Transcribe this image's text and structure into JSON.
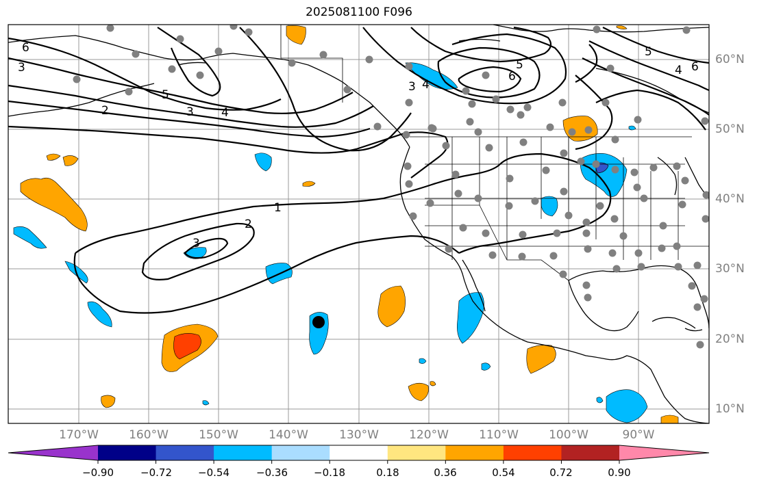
{
  "title": "2025081100 F096",
  "lon_labels": [
    "170°W",
    "160°W",
    "150°W",
    "140°W",
    "130°W",
    "120°W",
    "110°W",
    "100°W",
    "90°W"
  ],
  "lat_labels": [
    "60°N",
    "50°N",
    "40°N",
    "30°N",
    "20°N",
    "10°N"
  ],
  "colorbar": {
    "ticks": [
      "−0.90",
      "−0.72",
      "−0.54",
      "−0.36",
      "−0.18",
      "0.18",
      "0.36",
      "0.54",
      "0.72",
      "0.90"
    ],
    "colors": [
      "#9933cc",
      "#000088",
      "#3355cc",
      "#00bbff",
      "#aaddff",
      "#ffffff",
      "#ffe680",
      "#ffa500",
      "#ff4000",
      "#b22222",
      "#ff88aa"
    ]
  },
  "contour_labels": [
    "6",
    "3",
    "5",
    "2",
    "3",
    "4",
    "1",
    "2",
    "3",
    "3",
    "4",
    "5",
    "6",
    "5",
    "4",
    "6"
  ],
  "colors": {
    "land_outline": "#000000",
    "grid": "#999999",
    "station_dot": "#808080",
    "positive_fill": "#ffa500",
    "negative_fill": "#00bbff"
  }
}
